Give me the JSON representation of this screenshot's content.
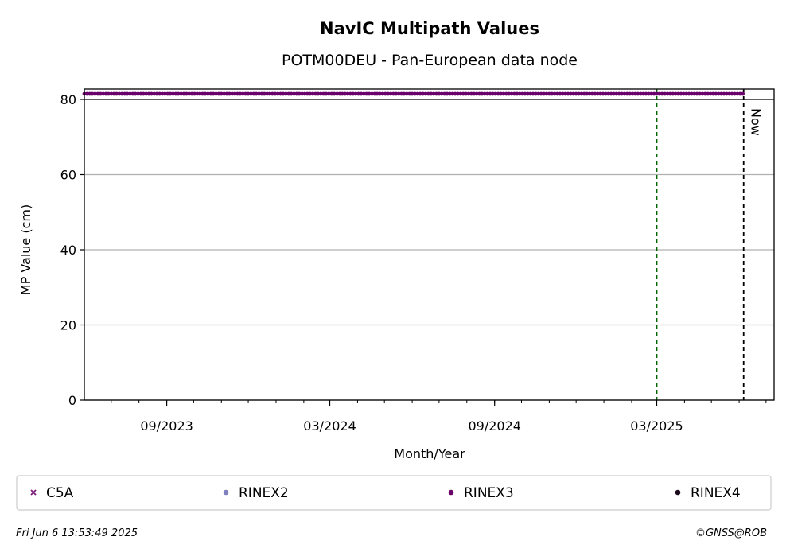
{
  "chart_data": {
    "type": "scatter",
    "title": "NavIC Multipath Values",
    "subtitle": "POTM00DEU - Pan-European data node",
    "xlabel": "Month/Year",
    "ylabel": "MP Value (cm)",
    "xlim": [
      "2023-06-01",
      "2025-07-10"
    ],
    "ylim": [
      0,
      80
    ],
    "yticks": [
      0,
      20,
      40,
      60,
      80
    ],
    "xticks": [
      {
        "date": "2023-09-01",
        "label": "09/2023"
      },
      {
        "date": "2024-03-01",
        "label": "03/2024"
      },
      {
        "date": "2024-09-01",
        "label": "09/2024"
      },
      {
        "date": "2025-03-01",
        "label": "03/2025"
      }
    ],
    "grid": "y",
    "series": [
      {
        "name": "C5A",
        "marker": "x",
        "color": "#7b1a7b",
        "x": [],
        "y": []
      },
      {
        "name": "RINEX2",
        "marker": "dot",
        "color": "#8080c0",
        "x": [],
        "y": []
      },
      {
        "name": "RINEX3",
        "marker": "dot",
        "color": "#6a006a",
        "x_start": "2023-06-01",
        "x_end": "2025-06-06",
        "y": 80,
        "note_clipped": true
      },
      {
        "name": "RINEX4",
        "marker": "dot",
        "color": "#1a0a1a",
        "x": [],
        "y": []
      }
    ],
    "vlines": [
      {
        "date": "2025-03-01",
        "color": "#006400",
        "style": "dashed",
        "label": ""
      },
      {
        "date": "2025-06-06",
        "color": "#000000",
        "style": "dashed",
        "label": "Now"
      }
    ],
    "legend_position": "bottom"
  },
  "footer": {
    "timestamp": "Fri Jun  6 13:53:49 2025",
    "credit": "©GNSS@ROB"
  }
}
